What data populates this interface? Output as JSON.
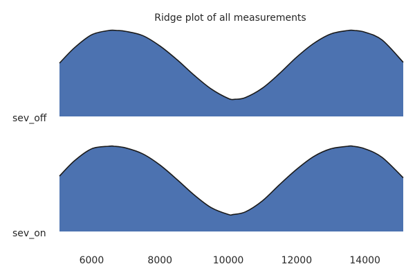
{
  "chart_data": {
    "type": "area",
    "title": "Ridge plot of all measurements",
    "xlabel": "",
    "ylabel": "",
    "xlim": [
      5060,
      15120
    ],
    "x_ticks": [
      6000,
      8000,
      10000,
      12000,
      14000
    ],
    "x_tick_labels": [
      "6000",
      "8000",
      "10000",
      "12000",
      "14000"
    ],
    "grid": false,
    "legend": "none",
    "fill_color": "#4c72b0",
    "line_color": "#1a1a1a",
    "series": [
      {
        "name": "sev_off",
        "x": [
          5060,
          5500,
          6000,
          6500,
          6750,
          7000,
          7500,
          8000,
          8500,
          9000,
          9500,
          10000,
          10200,
          10500,
          11000,
          11500,
          12000,
          12500,
          13000,
          13500,
          13700,
          14000,
          14500,
          15120
        ],
        "y": [
          0.62,
          0.8,
          0.95,
          1.0,
          1.0,
          0.99,
          0.94,
          0.82,
          0.66,
          0.48,
          0.32,
          0.21,
          0.2,
          0.22,
          0.33,
          0.5,
          0.69,
          0.85,
          0.96,
          1.0,
          1.0,
          0.98,
          0.89,
          0.63
        ]
      },
      {
        "name": "sev_on",
        "x": [
          5060,
          5500,
          6000,
          6500,
          6650,
          7000,
          7500,
          8000,
          8500,
          9000,
          9500,
          10000,
          10150,
          10500,
          11000,
          11500,
          12000,
          12500,
          13000,
          13500,
          13650,
          14000,
          14500,
          15120
        ],
        "y": [
          0.65,
          0.83,
          0.97,
          1.0,
          1.0,
          0.98,
          0.91,
          0.78,
          0.61,
          0.43,
          0.28,
          0.2,
          0.2,
          0.23,
          0.36,
          0.55,
          0.73,
          0.88,
          0.97,
          1.0,
          1.0,
          0.97,
          0.87,
          0.63
        ]
      }
    ]
  }
}
